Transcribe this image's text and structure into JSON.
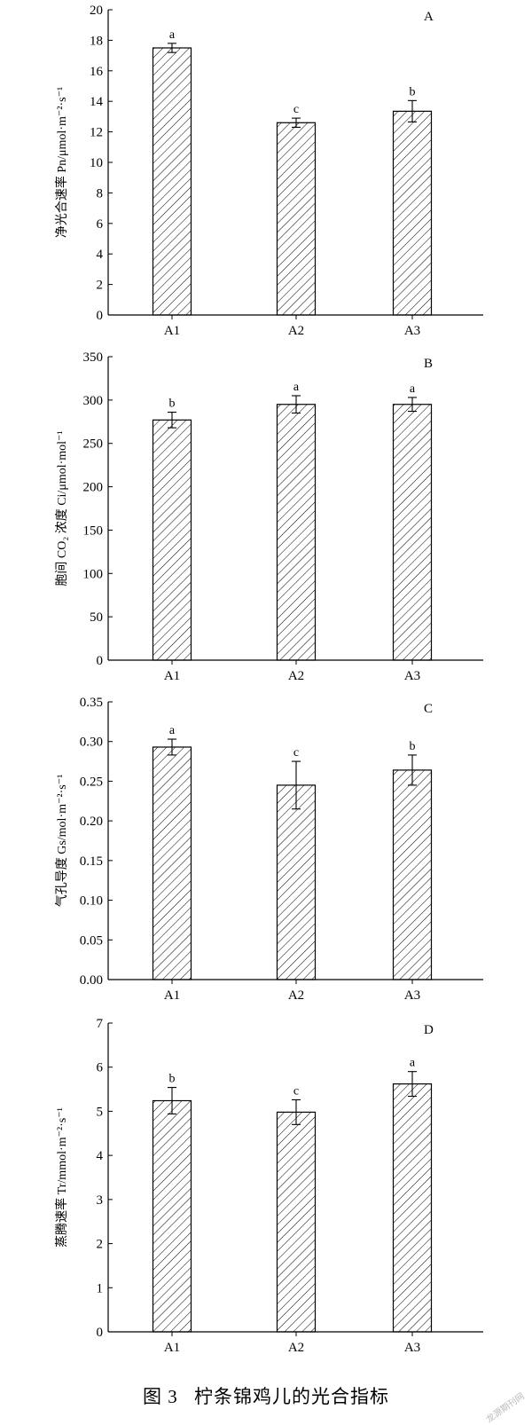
{
  "chart_data": [
    {
      "type": "bar",
      "panel_label": "A",
      "ylabel": "净光合速率 Pn/μmol·m⁻²·s⁻¹",
      "categories": [
        "A1",
        "A2",
        "A3"
      ],
      "values": [
        17.5,
        12.6,
        13.35
      ],
      "errors": [
        0.3,
        0.3,
        0.7
      ],
      "significance": [
        "a",
        "c",
        "b"
      ],
      "ylim": [
        0,
        20
      ],
      "yticks": [
        "0",
        "2",
        "4",
        "6",
        "8",
        "10",
        "12",
        "14",
        "16",
        "18",
        "20"
      ],
      "grid": false
    },
    {
      "type": "bar",
      "panel_label": "B",
      "ylabel": "胞间 CO₂ 浓度 Ci/μmol·mol⁻¹",
      "categories": [
        "A1",
        "A2",
        "A3"
      ],
      "values": [
        277,
        295,
        295
      ],
      "errors": [
        9,
        10,
        8
      ],
      "significance": [
        "b",
        "a",
        "a"
      ],
      "ylim": [
        0,
        350
      ],
      "yticks": [
        "0",
        "50",
        "100",
        "150",
        "200",
        "250",
        "300",
        "350"
      ],
      "grid": false
    },
    {
      "type": "bar",
      "panel_label": "C",
      "ylabel": "气孔导度 Gs/mol·m⁻²·s⁻¹",
      "categories": [
        "A1",
        "A2",
        "A3"
      ],
      "values": [
        0.293,
        0.245,
        0.264
      ],
      "errors": [
        0.01,
        0.03,
        0.019
      ],
      "significance": [
        "a",
        "c",
        "b"
      ],
      "ylim": [
        0,
        0.35
      ],
      "yticks": [
        "0.00",
        "0.05",
        "0.10",
        "0.15",
        "0.20",
        "0.25",
        "0.30",
        "0.35"
      ],
      "grid": false
    },
    {
      "type": "bar",
      "panel_label": "D",
      "ylabel": "蒸腾速率 Tr/mmol·m⁻²·s⁻¹",
      "categories": [
        "A1",
        "A2",
        "A3"
      ],
      "values": [
        5.24,
        4.98,
        5.62
      ],
      "errors": [
        0.3,
        0.28,
        0.28
      ],
      "significance": [
        "b",
        "c",
        "a"
      ],
      "ylim": [
        0,
        7
      ],
      "yticks": [
        "0",
        "1",
        "2",
        "3",
        "4",
        "5",
        "6",
        "7"
      ],
      "grid": false
    }
  ],
  "caption": {
    "figure_number": "图 3",
    "title": "柠条锦鸡儿的光合指标"
  },
  "watermark": "龙源期刊网",
  "colors": {
    "bar_outline": "#000000",
    "hatch": "#000000",
    "background": "#ffffff"
  }
}
